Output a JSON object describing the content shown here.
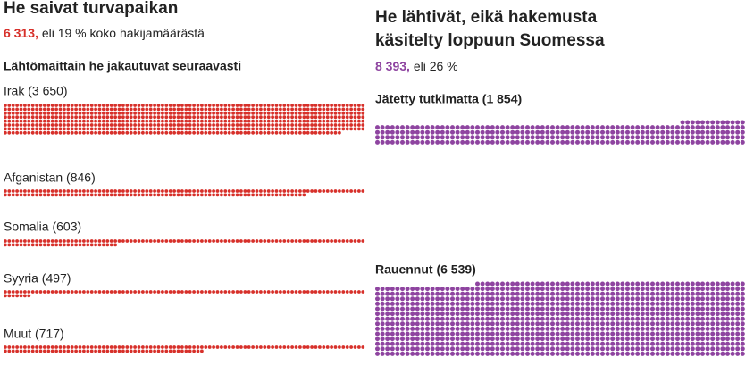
{
  "left": {
    "title": "He saivat turvapaikan",
    "highlight": "6 313,",
    "subtitle": "eli 19 % koko hakijamäärästä",
    "heading": "Lähtömaittain he jakautuvat seuraavasti",
    "color": "#d7302a",
    "groups": [
      {
        "label": "Irak (3 650)",
        "value": 3650
      },
      {
        "label": "Afganistan (846)",
        "value": 846
      },
      {
        "label": "Somalia (603)",
        "value": 603
      },
      {
        "label": "Syyria (497)",
        "value": 497
      },
      {
        "label": "Muut (717)",
        "value": 717
      }
    ]
  },
  "right": {
    "title": [
      "He lähtivät, eikä hakemusta",
      "käsitelty loppuun Suomessa"
    ],
    "highlight": "8 393,",
    "subtitle": "eli 26 %",
    "color": "#8e44a0",
    "groups": [
      {
        "label": "Jätetty tutkimatta (1 854)",
        "value": 1854
      },
      {
        "label": "Rauennut (6 539)",
        "value": 6539
      }
    ]
  }
}
